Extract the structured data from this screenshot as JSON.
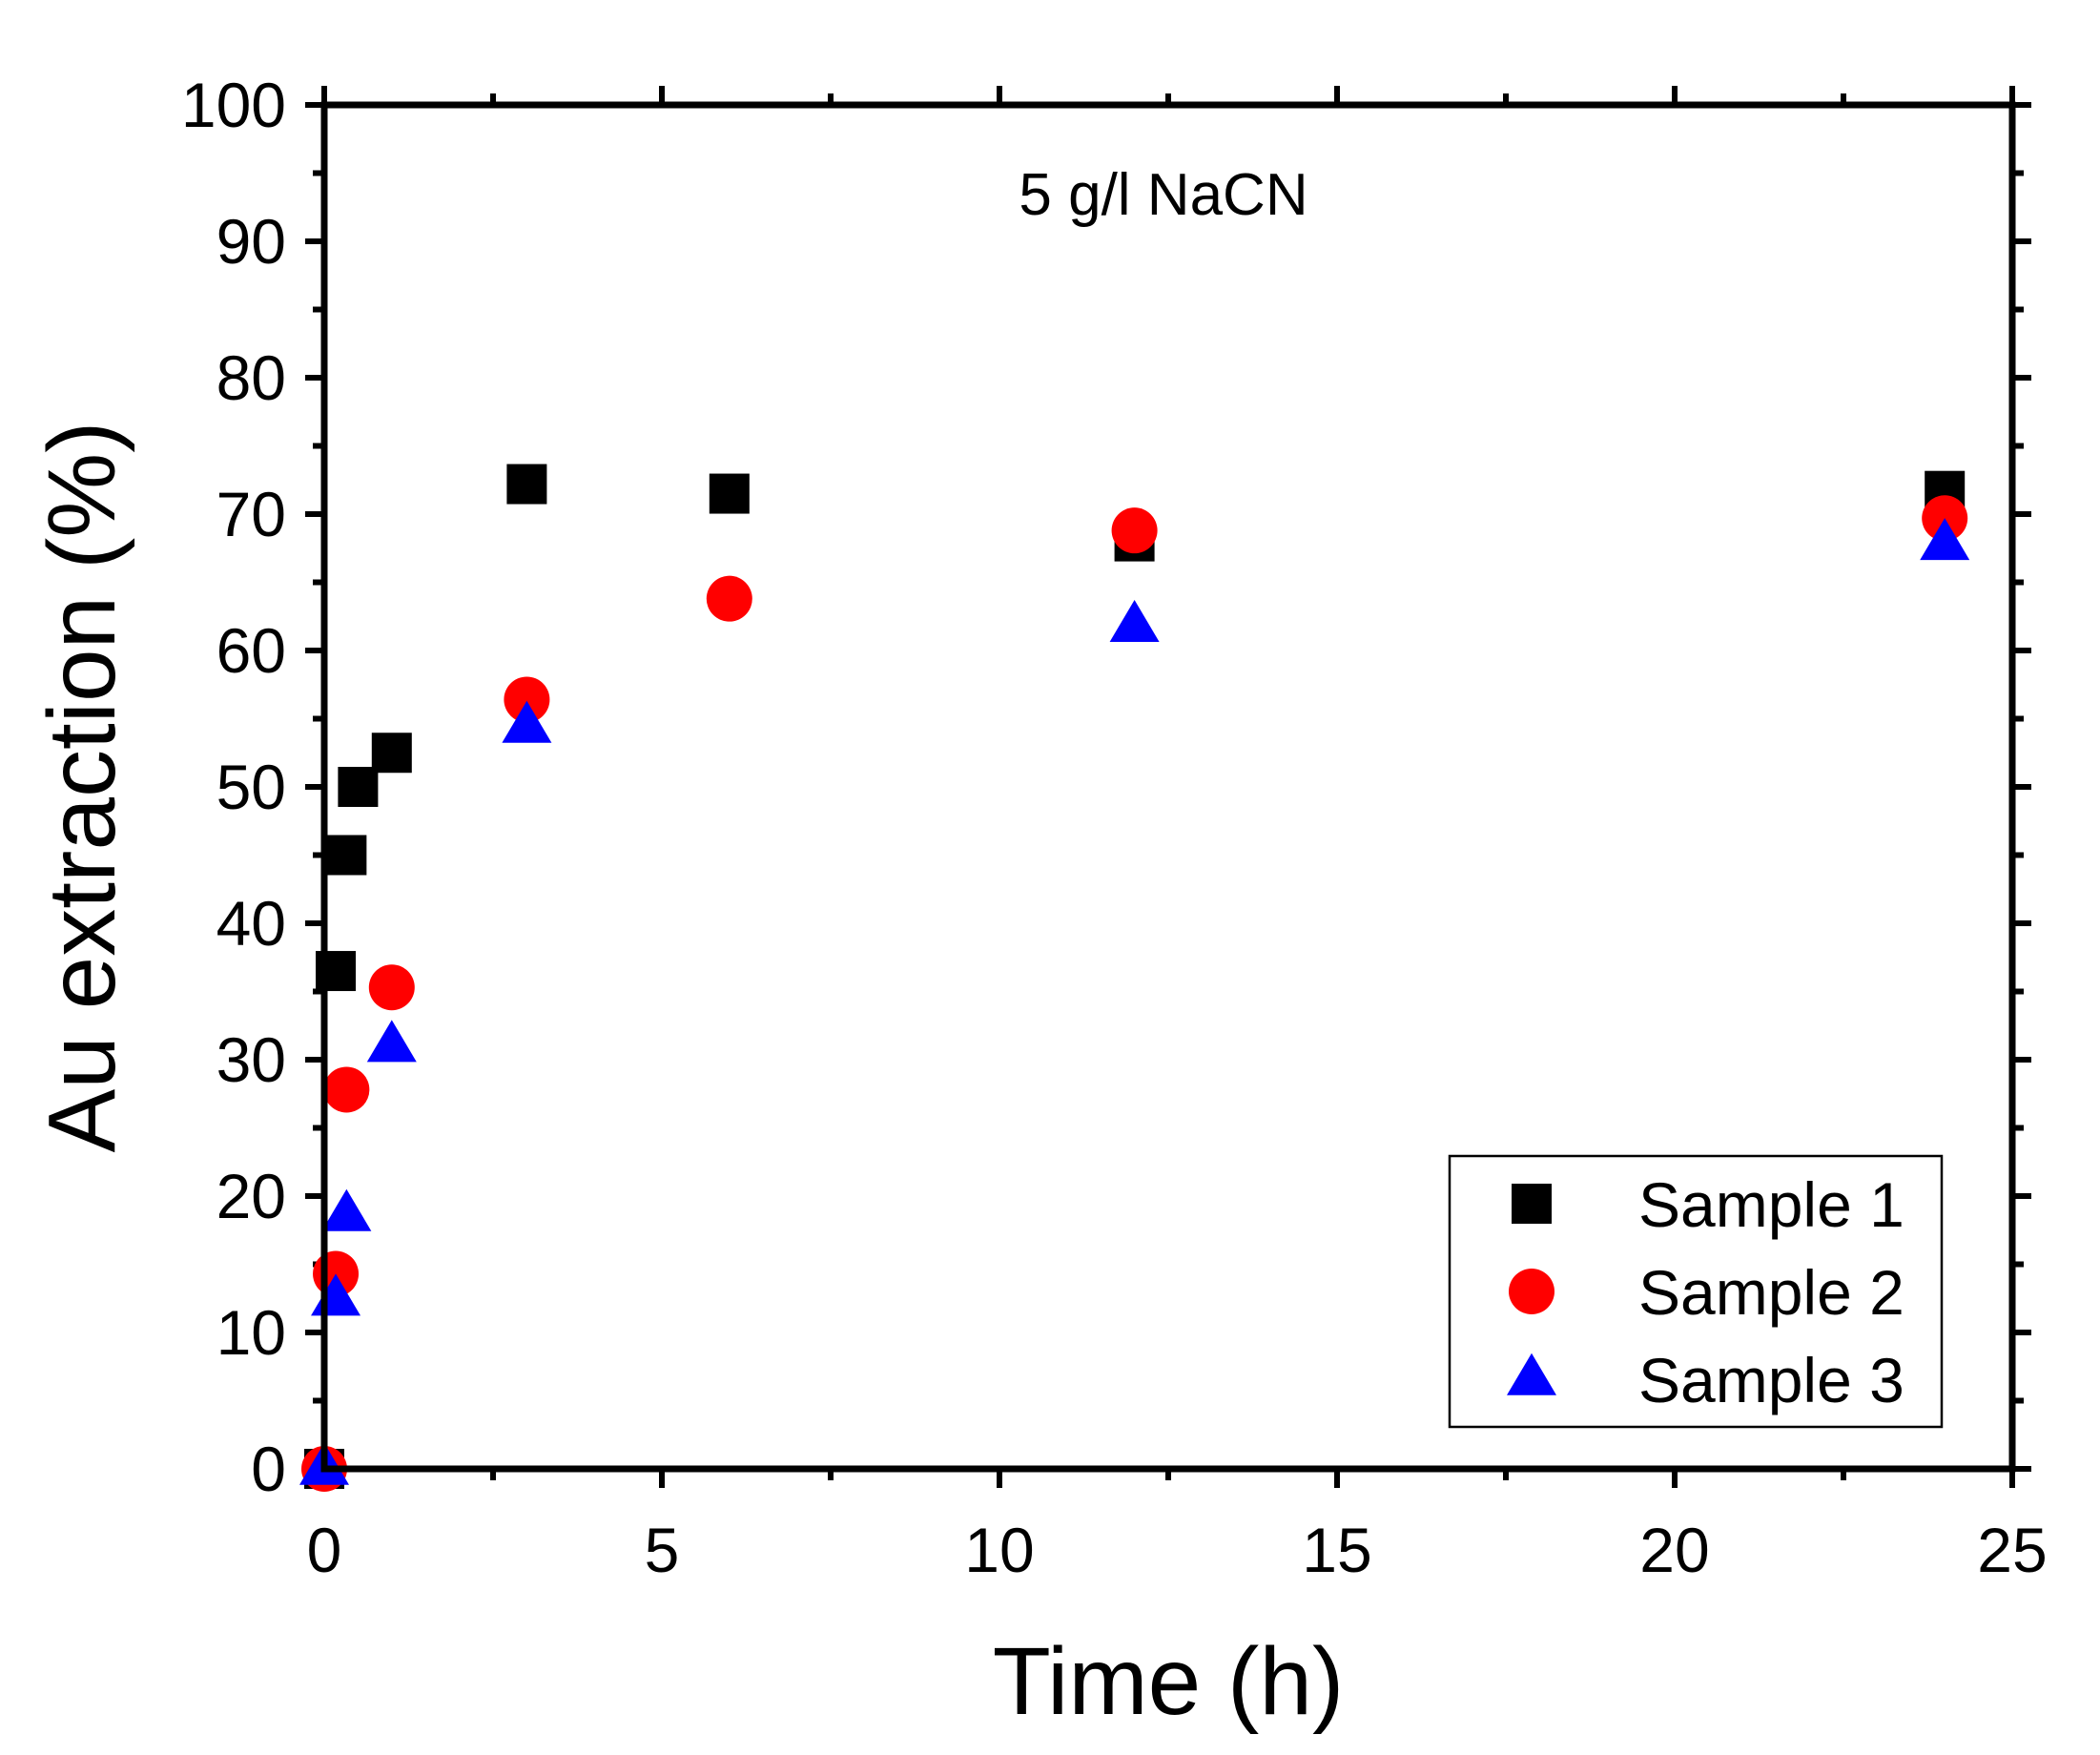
{
  "chart_data": {
    "type": "scatter",
    "annotation": "5 g/l NaCN",
    "xlabel": "Time (h)",
    "ylabel": "Au extraction (%)",
    "xlim": [
      0,
      25
    ],
    "ylim": [
      0,
      100
    ],
    "xticks": [
      0,
      5,
      10,
      15,
      20,
      25
    ],
    "xtick_labels": [
      "0",
      "5",
      "10",
      "15",
      "20",
      "25"
    ],
    "yticks": [
      0,
      10,
      20,
      30,
      40,
      50,
      60,
      70,
      80,
      90,
      100
    ],
    "ytick_labels": [
      "0",
      "10",
      "20",
      "30",
      "40",
      "50",
      "60",
      "70",
      "80",
      "90",
      "100"
    ],
    "legend_position": "bottom-right",
    "series": [
      {
        "name": "Sample 1",
        "marker": "square",
        "color": "#000000",
        "x": [
          0,
          0.17,
          0.33,
          0.5,
          1,
          3,
          6,
          12,
          24
        ],
        "y": [
          0,
          36.5,
          45,
          50,
          52.5,
          72.2,
          71.5,
          68,
          71.7
        ]
      },
      {
        "name": "Sample 2",
        "marker": "circle",
        "color": "#ff0000",
        "x": [
          0,
          0.17,
          0.33,
          1,
          3,
          6,
          12,
          24
        ],
        "y": [
          0,
          14.3,
          27.8,
          35.3,
          56.4,
          63.8,
          68.8,
          69.7
        ]
      },
      {
        "name": "Sample 3",
        "marker": "triangle",
        "color": "#0000ff",
        "x": [
          0,
          0.17,
          0.33,
          1,
          3,
          12,
          24
        ],
        "y": [
          0,
          12.4,
          18.6,
          31,
          54.4,
          61.8,
          67.8
        ]
      }
    ]
  }
}
